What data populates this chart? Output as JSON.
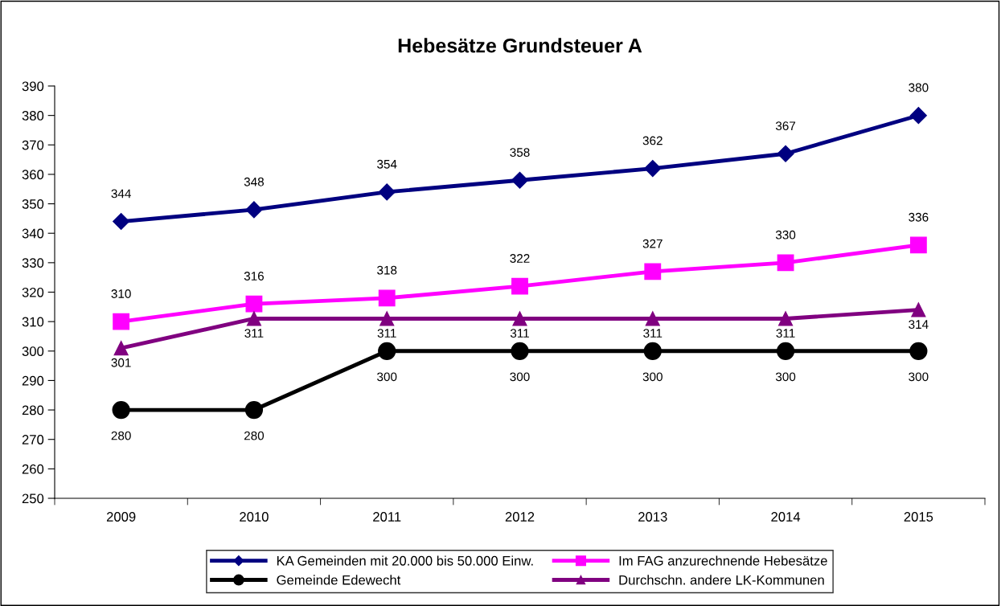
{
  "chart_data": {
    "type": "line",
    "title": "Hebesätze Grundsteuer A",
    "categories": [
      "2009",
      "2010",
      "2011",
      "2012",
      "2013",
      "2014",
      "2015"
    ],
    "series": [
      {
        "name": "KA Gemeinden mit 20.000 bis 50.000 Einw.",
        "color": "#000080",
        "marker": "diamond",
        "values": [
          344,
          348,
          354,
          358,
          362,
          367,
          380
        ]
      },
      {
        "name": "Im FAG anzurechnende Hebesätze",
        "color": "#ff00ff",
        "marker": "square",
        "values": [
          310,
          316,
          318,
          322,
          327,
          330,
          336
        ]
      },
      {
        "name": "Gemeinde Edewecht",
        "color": "#000000",
        "marker": "circle",
        "values": [
          280,
          280,
          300,
          300,
          300,
          300,
          300
        ]
      },
      {
        "name": "Durchschn. andere LK-Kommunen",
        "color": "#800080",
        "marker": "triangle",
        "values": [
          301,
          311,
          311,
          311,
          311,
          311,
          314
        ]
      }
    ],
    "ylim": [
      250,
      390
    ],
    "yticks": [
      250,
      260,
      270,
      280,
      290,
      300,
      310,
      320,
      330,
      340,
      350,
      360,
      370,
      380,
      390
    ],
    "grid": false,
    "legend": "bottom",
    "data_labels": true,
    "line_style": "solid"
  }
}
